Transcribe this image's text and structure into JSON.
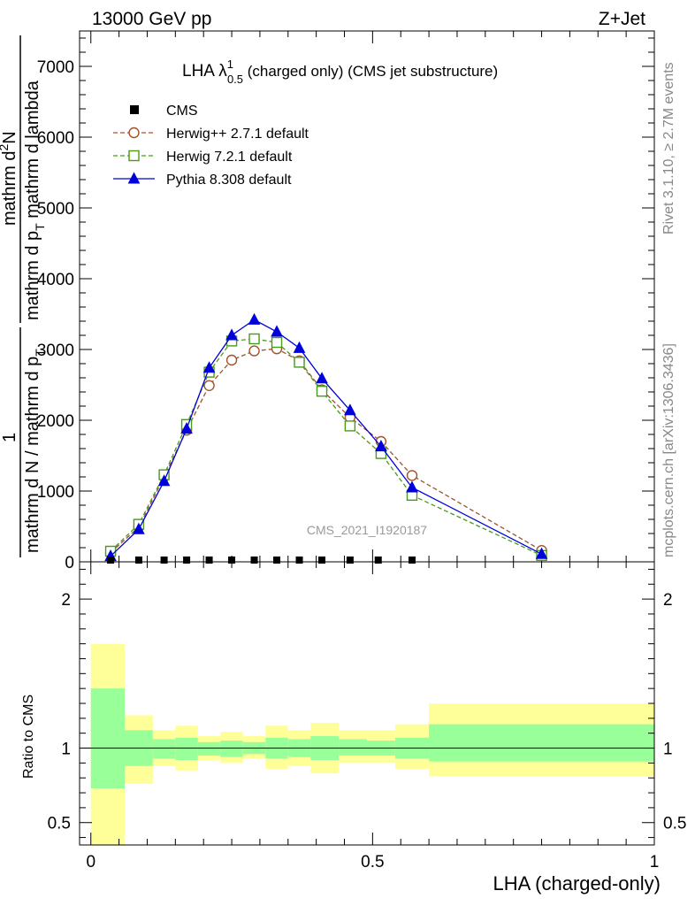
{
  "header": {
    "left": "13000 GeV pp",
    "right": "Z+Jet"
  },
  "side_labels": {
    "rivet": "Rivet 3.1.10, ≥ 2.7M events",
    "mcplots": "mcplots.cern.ch [arXiv:1306.3436]"
  },
  "chart_data": {
    "type": "line",
    "title_main": "LHA λ",
    "title_sup": "1",
    "title_sub": "0.5",
    "title_rest": " (charged only) (CMS jet substructure)",
    "watermark": "CMS_2021_I1920187",
    "xlabel": "LHA (charged-only)",
    "ylabel_upper": {
      "one": "1",
      "left_line": "mathrm d N / mathrm d p",
      "left_sub": "T",
      "num": "mathrm d",
      "num_sup": "2",
      "num_n": "N",
      "den": "mathrm d p",
      "den_sub": "T",
      "den_rest": " mathrm d lambda"
    },
    "ylabel_lower": "Ratio to CMS",
    "xlim": [
      -0.02,
      1.0
    ],
    "ylim_main": [
      0,
      7500
    ],
    "ylim_ratio": [
      0.35,
      2.25
    ],
    "x_ticks": [
      {
        "value": 0,
        "label": "0"
      },
      {
        "value": 0.5,
        "label": "0.5"
      },
      {
        "value": 1,
        "label": "1"
      }
    ],
    "y_ticks_main": [
      {
        "value": 0,
        "label": "0"
      },
      {
        "value": 1000,
        "label": "1000"
      },
      {
        "value": 2000,
        "label": "2000"
      },
      {
        "value": 3000,
        "label": "3000"
      },
      {
        "value": 4000,
        "label": "4000"
      },
      {
        "value": 5000,
        "label": "5000"
      },
      {
        "value": 6000,
        "label": "6000"
      },
      {
        "value": 7000,
        "label": "7000"
      }
    ],
    "y_ticks_ratio": [
      {
        "value": 0.5,
        "label": "0.5"
      },
      {
        "value": 1,
        "label": "1"
      },
      {
        "value": 2,
        "label": "2"
      }
    ],
    "cms_x": [
      0.035,
      0.085,
      0.13,
      0.17,
      0.21,
      0.25,
      0.29,
      0.33,
      0.37,
      0.41,
      0.46,
      0.51,
      0.57
    ],
    "series": [
      {
        "name": "Herwig++ 2.7.1 default",
        "color": "#a0522d",
        "marker": "circle",
        "dash": "5,3",
        "x": [
          0.035,
          0.085,
          0.13,
          0.17,
          0.21,
          0.25,
          0.29,
          0.33,
          0.37,
          0.41,
          0.46,
          0.515,
          0.57,
          0.8
        ],
        "y": [
          130,
          490,
          1200,
          1860,
          2490,
          2850,
          2980,
          3010,
          2840,
          2430,
          2040,
          1700,
          1220,
          160
        ]
      },
      {
        "name": "Herwig 7.2.1 default",
        "color": "#4a9a1c",
        "marker": "square",
        "dash": "5,3",
        "x": [
          0.035,
          0.085,
          0.13,
          0.17,
          0.21,
          0.25,
          0.29,
          0.33,
          0.37,
          0.41,
          0.46,
          0.515,
          0.57,
          0.8
        ],
        "y": [
          150,
          530,
          1230,
          1940,
          2680,
          3120,
          3150,
          3100,
          2820,
          2410,
          1920,
          1530,
          940,
          90
        ]
      },
      {
        "name": "Pythia 8.308 default",
        "color": "#0000dd",
        "marker": "triangle",
        "dash": "",
        "x": [
          0.035,
          0.085,
          0.13,
          0.17,
          0.21,
          0.25,
          0.29,
          0.33,
          0.37,
          0.41,
          0.46,
          0.515,
          0.57,
          0.8
        ],
        "y": [
          80,
          460,
          1140,
          1880,
          2740,
          3200,
          3420,
          3250,
          3020,
          2590,
          2140,
          1630,
          1050,
          110
        ]
      }
    ],
    "cms_legend": "CMS",
    "ratio_bands": {
      "edges": [
        0,
        0.06,
        0.11,
        0.15,
        0.19,
        0.23,
        0.27,
        0.31,
        0.35,
        0.39,
        0.44,
        0.49,
        0.54,
        0.6,
        1.0
      ],
      "green_lo": [
        0.73,
        0.88,
        0.93,
        0.92,
        0.95,
        0.94,
        0.96,
        0.93,
        0.94,
        0.92,
        0.95,
        0.95,
        0.93,
        0.91
      ],
      "green_hi": [
        1.4,
        1.12,
        1.06,
        1.07,
        1.04,
        1.05,
        1.04,
        1.07,
        1.06,
        1.08,
        1.06,
        1.05,
        1.07,
        1.16
      ],
      "yellow_lo": [
        0.35,
        0.76,
        0.88,
        0.85,
        0.92,
        0.9,
        0.93,
        0.86,
        0.88,
        0.83,
        0.9,
        0.9,
        0.86,
        0.81
      ],
      "yellow_hi": [
        1.7,
        1.22,
        1.12,
        1.15,
        1.08,
        1.11,
        1.08,
        1.15,
        1.12,
        1.17,
        1.12,
        1.12,
        1.16,
        1.3
      ]
    }
  }
}
